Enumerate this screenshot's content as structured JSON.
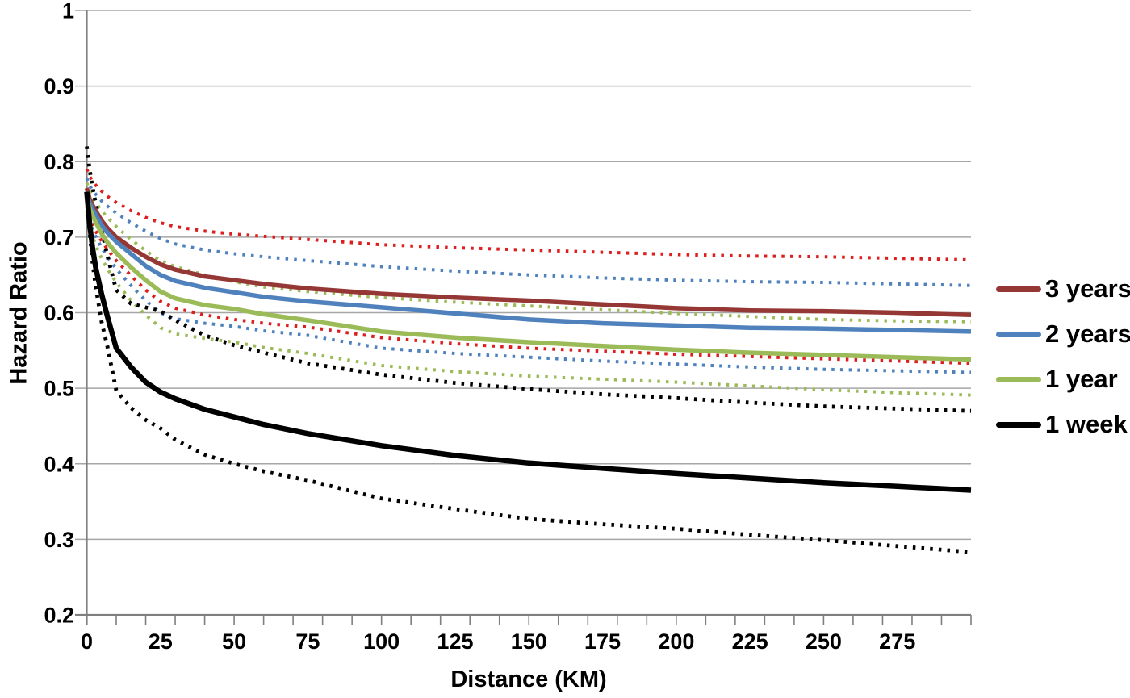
{
  "chart_data": {
    "type": "line",
    "title": "",
    "xlabel": "Distance (KM)",
    "ylabel": "Hazard Ratio",
    "xlim": [
      0,
      300
    ],
    "ylim": [
      0.2,
      1.0
    ],
    "grid": "horizontal",
    "legend_position": "right",
    "axis_color": "#7F7F7F",
    "grid_color": "#A6A6A6",
    "tick_label_color": "#000000",
    "y_ticks": [
      "1",
      "0.9",
      "0.8",
      "0.7",
      "0.6",
      "0.5",
      "0.4",
      "0.3",
      "0.2"
    ],
    "y_tick_values": [
      1,
      0.9,
      0.8,
      0.7,
      0.6,
      0.5,
      0.4,
      0.3,
      0.2
    ],
    "x_tick_labels": [
      "0",
      "25",
      "50",
      "75",
      "100",
      "125",
      "150",
      "175",
      "200",
      "225",
      "250",
      "275"
    ],
    "x_label_values": [
      0,
      25,
      50,
      75,
      100,
      125,
      150,
      175,
      200,
      225,
      250,
      275
    ],
    "x_minor_tick_step": 10,
    "x": [
      0,
      1,
      2,
      3,
      5,
      7,
      10,
      15,
      20,
      25,
      30,
      40,
      50,
      60,
      75,
      100,
      125,
      150,
      175,
      200,
      225,
      250,
      275,
      300
    ],
    "series": [
      {
        "name": "3 years",
        "color": "#953735",
        "ci_color": "#DC1E1E",
        "line_style": "solid",
        "ci_style": "dotted",
        "values": [
          0.765,
          0.75,
          0.742,
          0.735,
          0.722,
          0.712,
          0.7,
          0.686,
          0.674,
          0.664,
          0.657,
          0.648,
          0.643,
          0.638,
          0.632,
          0.625,
          0.62,
          0.616,
          0.611,
          0.606,
          0.603,
          0.602,
          0.6,
          0.597
        ],
        "ci_upper": [
          0.79,
          0.78,
          0.774,
          0.769,
          0.761,
          0.754,
          0.746,
          0.735,
          0.726,
          0.719,
          0.714,
          0.708,
          0.704,
          0.701,
          0.697,
          0.69,
          0.686,
          0.683,
          0.68,
          0.677,
          0.675,
          0.674,
          0.672,
          0.67
        ],
        "ci_lower": [
          0.74,
          0.726,
          0.716,
          0.708,
          0.695,
          0.684,
          0.669,
          0.649,
          0.63,
          0.615,
          0.606,
          0.597,
          0.591,
          0.586,
          0.581,
          0.567,
          0.559,
          0.553,
          0.549,
          0.545,
          0.542,
          0.539,
          0.536,
          0.533
        ]
      },
      {
        "name": "2 years",
        "color": "#4F81BD",
        "ci_color": "#4F81BD",
        "line_style": "solid",
        "ci_style": "dotted",
        "values": [
          0.76,
          0.745,
          0.737,
          0.73,
          0.716,
          0.706,
          0.694,
          0.678,
          0.662,
          0.65,
          0.642,
          0.633,
          0.627,
          0.621,
          0.615,
          0.607,
          0.599,
          0.591,
          0.586,
          0.583,
          0.58,
          0.579,
          0.577,
          0.575
        ],
        "ci_upper": [
          0.778,
          0.768,
          0.762,
          0.757,
          0.748,
          0.741,
          0.732,
          0.719,
          0.708,
          0.698,
          0.691,
          0.683,
          0.678,
          0.674,
          0.669,
          0.661,
          0.655,
          0.65,
          0.646,
          0.643,
          0.641,
          0.64,
          0.638,
          0.636
        ],
        "ci_lower": [
          0.735,
          0.72,
          0.71,
          0.701,
          0.686,
          0.674,
          0.658,
          0.636,
          0.616,
          0.6,
          0.592,
          0.586,
          0.582,
          0.576,
          0.57,
          0.553,
          0.546,
          0.541,
          0.536,
          0.532,
          0.528,
          0.525,
          0.523,
          0.521
        ]
      },
      {
        "name": "1 year",
        "color": "#9BBB59",
        "ci_color": "#9BBB59",
        "line_style": "solid",
        "ci_style": "dotted",
        "values": [
          0.755,
          0.738,
          0.728,
          0.72,
          0.705,
          0.693,
          0.679,
          0.66,
          0.643,
          0.628,
          0.619,
          0.61,
          0.605,
          0.598,
          0.59,
          0.575,
          0.567,
          0.561,
          0.556,
          0.551,
          0.547,
          0.544,
          0.541,
          0.538
        ],
        "ci_upper": [
          0.772,
          0.76,
          0.752,
          0.746,
          0.735,
          0.726,
          0.714,
          0.697,
          0.682,
          0.669,
          0.661,
          0.65,
          0.641,
          0.634,
          0.628,
          0.62,
          0.614,
          0.609,
          0.604,
          0.599,
          0.595,
          0.591,
          0.589,
          0.588
        ],
        "ci_lower": [
          0.73,
          0.712,
          0.7,
          0.69,
          0.672,
          0.658,
          0.64,
          0.616,
          0.597,
          0.58,
          0.572,
          0.566,
          0.561,
          0.554,
          0.546,
          0.53,
          0.522,
          0.516,
          0.512,
          0.508,
          0.503,
          0.498,
          0.494,
          0.491
        ]
      },
      {
        "name": "1 week",
        "color": "#000000",
        "ci_color": "#000000",
        "line_style": "solid",
        "ci_style": "dotted",
        "values": [
          0.76,
          0.716,
          0.685,
          0.66,
          0.625,
          0.595,
          0.553,
          0.528,
          0.508,
          0.495,
          0.486,
          0.472,
          0.462,
          0.452,
          0.44,
          0.424,
          0.411,
          0.401,
          0.394,
          0.387,
          0.381,
          0.375,
          0.37,
          0.365
        ],
        "ci_upper": [
          0.82,
          0.788,
          0.765,
          0.745,
          0.71,
          0.675,
          0.63,
          0.612,
          0.607,
          0.602,
          0.59,
          0.57,
          0.557,
          0.547,
          0.533,
          0.518,
          0.507,
          0.499,
          0.492,
          0.487,
          0.481,
          0.476,
          0.473,
          0.47
        ],
        "ci_lower": [
          0.76,
          0.705,
          0.665,
          0.635,
          0.588,
          0.555,
          0.497,
          0.474,
          0.458,
          0.447,
          0.432,
          0.412,
          0.4,
          0.39,
          0.378,
          0.354,
          0.34,
          0.327,
          0.32,
          0.314,
          0.306,
          0.299,
          0.291,
          0.283
        ]
      }
    ]
  }
}
